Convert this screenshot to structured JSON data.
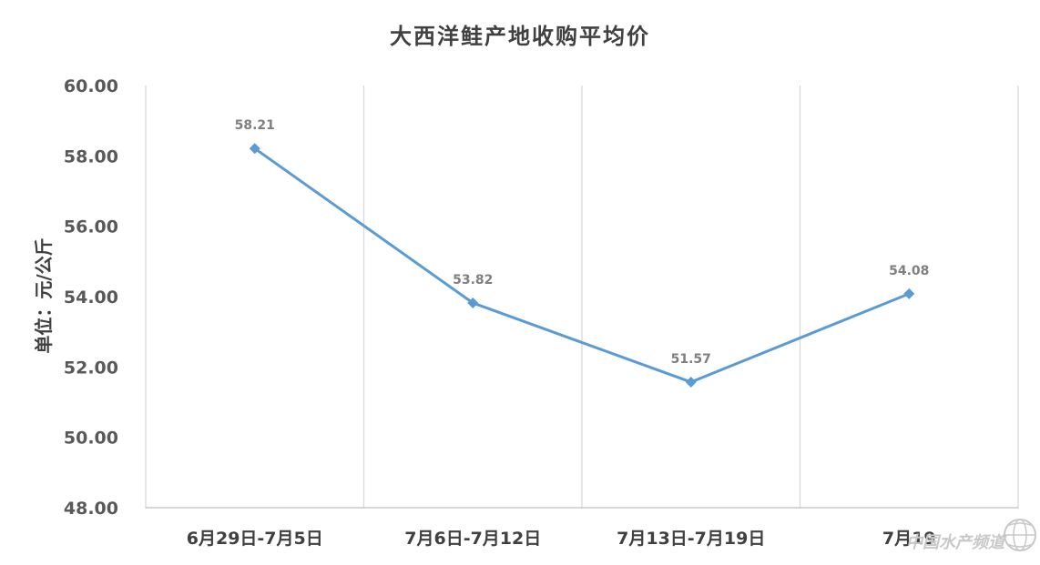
{
  "chart_data": {
    "type": "line",
    "title": "大西洋鲑产地收购平均价",
    "ylabel": "单位：元/公斤",
    "xlabel": "",
    "categories": [
      "6月29日-7月5日",
      "7月6日-7月12日",
      "7月13日-7月19日",
      "7月19"
    ],
    "series": [
      {
        "values": [
          58.21,
          53.82,
          51.57,
          54.08
        ]
      }
    ],
    "data_labels": [
      "58.21",
      "53.82",
      "51.57",
      "54.08"
    ],
    "y_ticks": [
      "48.00",
      "50.00",
      "52.00",
      "54.00",
      "56.00",
      "58.00",
      "60.00"
    ],
    "ylim": [
      48,
      60
    ],
    "grid": "vertical",
    "legend": "none",
    "colors": {
      "line": "#5b9bd5",
      "grid": "#d9d9d9",
      "axis": "#bfbfbf"
    }
  },
  "watermark": {
    "text": "中国水产频道",
    "logo": "globe-logo"
  }
}
